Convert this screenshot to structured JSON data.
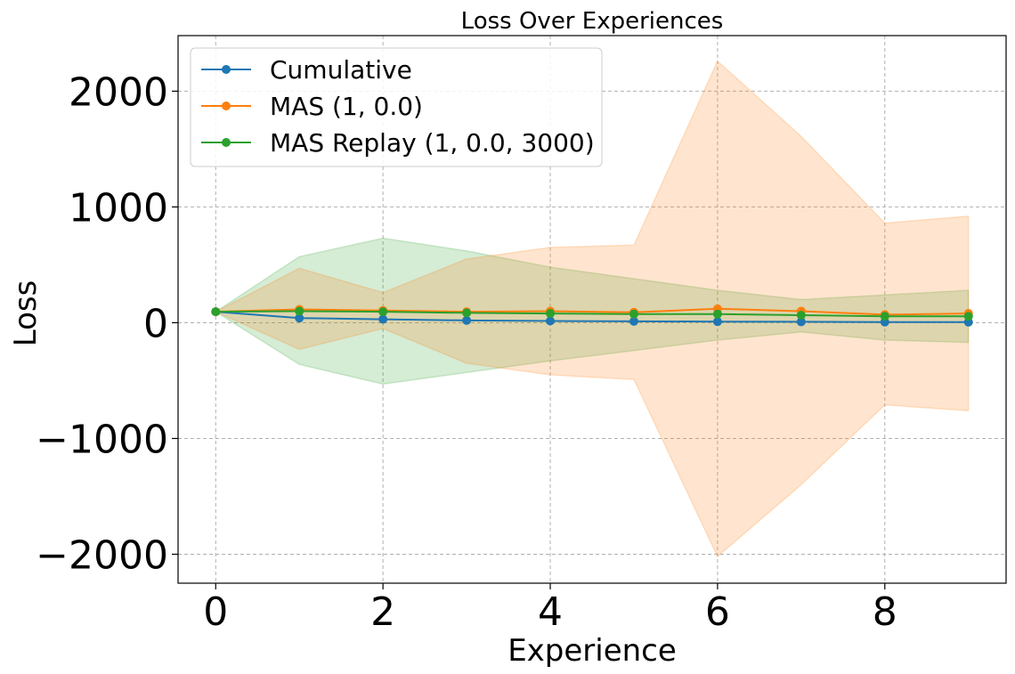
{
  "chart_data": {
    "type": "line",
    "title": "Loss Over Experiences",
    "xlabel": "Experience",
    "ylabel": "Loss",
    "xlim": [
      -0.45,
      9.45
    ],
    "ylim": [
      -2250,
      2480
    ],
    "xticks": [
      0,
      2,
      4,
      6,
      8
    ],
    "yticks": [
      -2000,
      -1000,
      0,
      1000,
      2000
    ],
    "xtick_labels": [
      "0",
      "2",
      "4",
      "6",
      "8"
    ],
    "ytick_labels": [
      "−2000",
      "−1000",
      "0",
      "1000",
      "2000"
    ],
    "grid": true,
    "legend_position": "top-left",
    "x": [
      0,
      1,
      2,
      3,
      4,
      5,
      6,
      7,
      8,
      9
    ],
    "series": [
      {
        "name": "Cumulative",
        "color": "#1f77b4",
        "values": [
          95,
          40,
          30,
          20,
          15,
          12,
          10,
          8,
          6,
          5
        ],
        "lower": [
          95,
          40,
          30,
          20,
          15,
          12,
          10,
          8,
          6,
          5
        ],
        "upper": [
          95,
          40,
          30,
          20,
          15,
          12,
          10,
          8,
          6,
          5
        ]
      },
      {
        "name": "MAS (1, 0.0)",
        "color": "#ff7f0e",
        "values": [
          95,
          115,
          105,
          95,
          100,
          90,
          120,
          100,
          70,
          80
        ],
        "lower": [
          95,
          -230,
          -50,
          -350,
          -450,
          -490,
          -2020,
          -1400,
          -710,
          -760
        ],
        "upper": [
          95,
          470,
          260,
          550,
          650,
          670,
          2260,
          1610,
          860,
          920
        ]
      },
      {
        "name": "MAS Replay (1, 0.0, 3000)",
        "color": "#2ca02c",
        "values": [
          95,
          100,
          95,
          85,
          80,
          75,
          75,
          65,
          55,
          55
        ],
        "lower": [
          95,
          -360,
          -530,
          -430,
          -330,
          -240,
          -150,
          -80,
          -150,
          -170
        ],
        "upper": [
          95,
          570,
          730,
          620,
          480,
          380,
          280,
          200,
          240,
          280
        ]
      }
    ]
  }
}
